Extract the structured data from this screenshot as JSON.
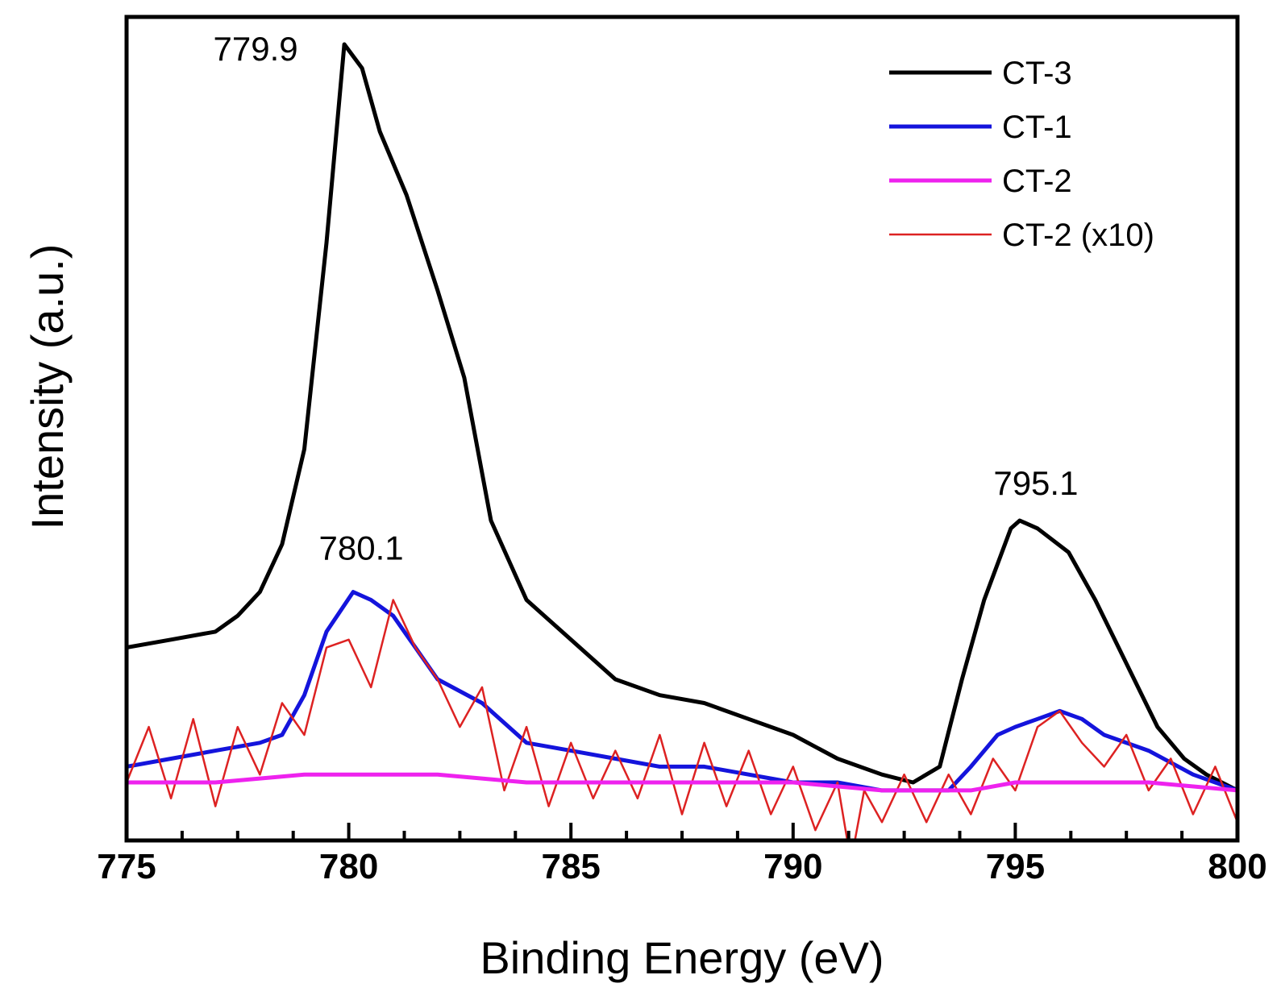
{
  "chart_data": {
    "type": "line",
    "xlabel": "Binding Energy (eV)",
    "ylabel": "Intensity (a.u.)",
    "xlim": [
      775,
      800
    ],
    "ylim": [
      0,
      100
    ],
    "x_ticks": [
      "775",
      "780",
      "785",
      "790",
      "795",
      "800"
    ],
    "legend_position": "top-right",
    "grid": false,
    "series": [
      {
        "name": "CT-3",
        "color": "#000000",
        "points": [
          [
            775,
            24
          ],
          [
            776,
            25
          ],
          [
            777,
            26
          ],
          [
            777.5,
            28
          ],
          [
            778,
            31
          ],
          [
            778.5,
            37
          ],
          [
            779,
            49
          ],
          [
            779.5,
            75
          ],
          [
            779.9,
            100
          ],
          [
            780.3,
            97
          ],
          [
            780.7,
            89
          ],
          [
            781.3,
            81
          ],
          [
            782,
            69
          ],
          [
            782.6,
            58
          ],
          [
            783.2,
            40
          ],
          [
            784,
            30
          ],
          [
            785,
            25
          ],
          [
            786,
            20
          ],
          [
            787,
            18
          ],
          [
            788,
            17
          ],
          [
            789,
            15
          ],
          [
            790,
            13
          ],
          [
            791,
            10
          ],
          [
            792,
            8
          ],
          [
            792.7,
            7
          ],
          [
            793.3,
            9
          ],
          [
            793.8,
            20
          ],
          [
            794.3,
            30
          ],
          [
            794.9,
            39
          ],
          [
            795.1,
            40
          ],
          [
            795.5,
            39
          ],
          [
            796.2,
            36
          ],
          [
            796.8,
            30
          ],
          [
            797.5,
            22
          ],
          [
            798.2,
            14
          ],
          [
            798.8,
            10
          ],
          [
            799.3,
            8
          ],
          [
            800,
            6
          ]
        ]
      },
      {
        "name": "CT-1",
        "color": "#1414dc",
        "points": [
          [
            775,
            9
          ],
          [
            776,
            10
          ],
          [
            777,
            11
          ],
          [
            778,
            12
          ],
          [
            778.5,
            13
          ],
          [
            779,
            18
          ],
          [
            779.5,
            26
          ],
          [
            780.1,
            31
          ],
          [
            780.5,
            30
          ],
          [
            781,
            28
          ],
          [
            781.5,
            24
          ],
          [
            782,
            20
          ],
          [
            783,
            17
          ],
          [
            784,
            12
          ],
          [
            785,
            11
          ],
          [
            786,
            10
          ],
          [
            787,
            9
          ],
          [
            788,
            9
          ],
          [
            789,
            8
          ],
          [
            790,
            7
          ],
          [
            791,
            7
          ],
          [
            792,
            6
          ],
          [
            793,
            6
          ],
          [
            793.5,
            6
          ],
          [
            794,
            9
          ],
          [
            794.6,
            13
          ],
          [
            795,
            14
          ],
          [
            795.5,
            15
          ],
          [
            796,
            16
          ],
          [
            796.5,
            15
          ],
          [
            797,
            13
          ],
          [
            798,
            11
          ],
          [
            799,
            8
          ],
          [
            800,
            6
          ]
        ]
      },
      {
        "name": "CT-2",
        "color": "#ee22ee",
        "points": [
          [
            775,
            7
          ],
          [
            777,
            7
          ],
          [
            779,
            8
          ],
          [
            780,
            8
          ],
          [
            781,
            8
          ],
          [
            782,
            8
          ],
          [
            784,
            7
          ],
          [
            786,
            7
          ],
          [
            788,
            7
          ],
          [
            790,
            7
          ],
          [
            792,
            6
          ],
          [
            794,
            6
          ],
          [
            795,
            7
          ],
          [
            796,
            7
          ],
          [
            797,
            7
          ],
          [
            798,
            7
          ],
          [
            800,
            6
          ]
        ]
      },
      {
        "name": "CT-2 (x10)",
        "color": "#dd2222",
        "points": [
          [
            775,
            7
          ],
          [
            775.5,
            14
          ],
          [
            776,
            5
          ],
          [
            776.5,
            15
          ],
          [
            777,
            4
          ],
          [
            777.5,
            14
          ],
          [
            778,
            8
          ],
          [
            778.5,
            17
          ],
          [
            779,
            13
          ],
          [
            779.5,
            24
          ],
          [
            780,
            25
          ],
          [
            780.5,
            19
          ],
          [
            781,
            30
          ],
          [
            781.5,
            24
          ],
          [
            782,
            20
          ],
          [
            782.5,
            14
          ],
          [
            783,
            19
          ],
          [
            783.5,
            6
          ],
          [
            784,
            14
          ],
          [
            784.5,
            4
          ],
          [
            785,
            12
          ],
          [
            785.5,
            5
          ],
          [
            786,
            11
          ],
          [
            786.5,
            5
          ],
          [
            787,
            13
          ],
          [
            787.5,
            3
          ],
          [
            788,
            12
          ],
          [
            788.5,
            4
          ],
          [
            789,
            11
          ],
          [
            789.5,
            3
          ],
          [
            790,
            9
          ],
          [
            790.5,
            1
          ],
          [
            791,
            7
          ],
          [
            791.3,
            -3
          ],
          [
            791.6,
            6
          ],
          [
            792,
            2
          ],
          [
            792.5,
            8
          ],
          [
            793,
            2
          ],
          [
            793.5,
            8
          ],
          [
            794,
            3
          ],
          [
            794.5,
            10
          ],
          [
            795,
            6
          ],
          [
            795.5,
            14
          ],
          [
            796,
            16
          ],
          [
            796.5,
            12
          ],
          [
            797,
            9
          ],
          [
            797.5,
            13
          ],
          [
            798,
            6
          ],
          [
            798.5,
            10
          ],
          [
            799,
            3
          ],
          [
            799.5,
            9
          ],
          [
            800,
            2
          ]
        ]
      }
    ],
    "annotations": [
      {
        "text": "779.9",
        "x": 779.9,
        "y": 100
      },
      {
        "text": "780.1",
        "x": 780.1,
        "y": 31
      },
      {
        "text": "795.1",
        "x": 795.1,
        "y": 40
      }
    ]
  }
}
